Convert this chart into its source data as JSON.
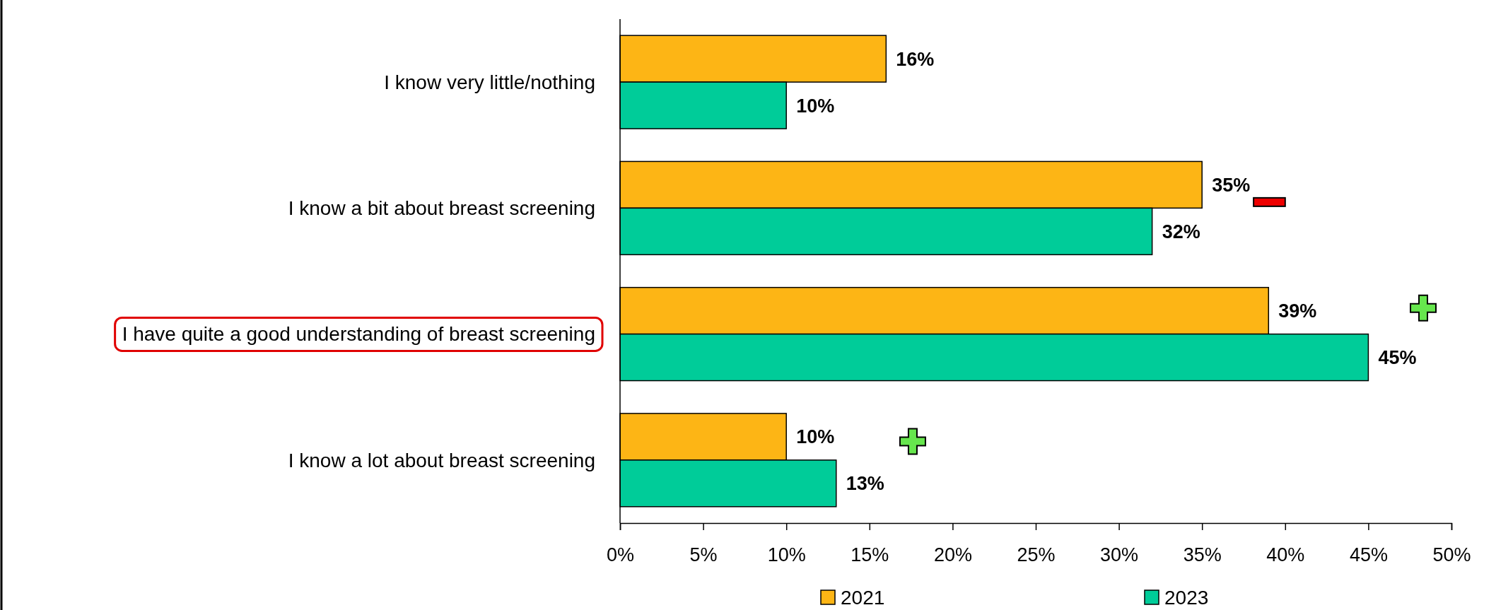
{
  "chart_data": {
    "type": "bar",
    "orientation": "horizontal",
    "categories": [
      "I know very little/nothing",
      "I know a bit about breast screening",
      "I have quite a good understanding of breast screening",
      "I know a lot about breast screening"
    ],
    "series": [
      {
        "name": "2021",
        "color": "#fdb515",
        "values": [
          16,
          35,
          39,
          10
        ],
        "value_labels": [
          "16%",
          "35%",
          "39%",
          "10%"
        ]
      },
      {
        "name": "2023",
        "color": "#00cc99",
        "values": [
          10,
          32,
          45,
          13
        ],
        "value_labels": [
          "10%",
          "32%",
          "45%",
          "13%"
        ]
      }
    ],
    "xlim": [
      0,
      50
    ],
    "xticks": [
      {
        "value": 0,
        "label": "0%"
      },
      {
        "value": 5,
        "label": "5%"
      },
      {
        "value": 10,
        "label": "10%"
      },
      {
        "value": 15,
        "label": "15%"
      },
      {
        "value": 20,
        "label": "20%"
      },
      {
        "value": 25,
        "label": "25%"
      },
      {
        "value": 30,
        "label": "30%"
      },
      {
        "value": 35,
        "label": "35%"
      },
      {
        "value": 40,
        "label": "40%"
      },
      {
        "value": 45,
        "label": "45%"
      },
      {
        "value": 50,
        "label": "50%"
      }
    ],
    "grid": false,
    "legend": "bottom"
  }
}
